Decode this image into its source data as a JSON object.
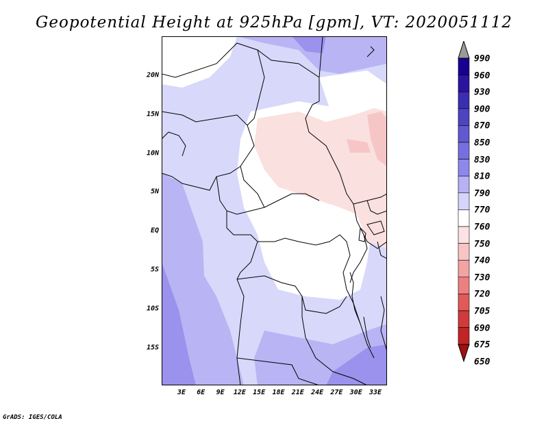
{
  "title": "Geopotential Height at 925hPa [gpm], VT: 2020051112",
  "credit": "GrADS: IGES/COLA",
  "axes": {
    "lat_labels": [
      "20N",
      "15N",
      "10N",
      "5N",
      "EQ",
      "5S",
      "10S",
      "15S"
    ],
    "lon_labels": [
      "3E",
      "6E",
      "9E",
      "12E",
      "15E",
      "18E",
      "21E",
      "24E",
      "27E",
      "30E",
      "33E"
    ]
  },
  "colorbar": {
    "levels": [
      "990",
      "960",
      "930",
      "900",
      "870",
      "850",
      "830",
      "810",
      "790",
      "770",
      "760",
      "750",
      "740",
      "730",
      "720",
      "705",
      "690",
      "675",
      "650"
    ],
    "colors": [
      "#9a9a9a",
      "#1a0090",
      "#2a14a0",
      "#3b2eb0",
      "#4d44c0",
      "#6059d0",
      "#776fe0",
      "#8f88ea",
      "#b7b2f5",
      "#d6d4fb",
      "#ffffff",
      "#fce2e2",
      "#f8c4c4",
      "#f2a4a4",
      "#ec8080",
      "#e05a5a",
      "#d03a3a",
      "#c02424",
      "#a01010"
    ]
  },
  "map_colors": {
    "c770": "#d8d8fb",
    "c790": "#b9b4f4",
    "c810": "#9a92ec",
    "c760": "#ffffff",
    "c750": "#fbe0e0",
    "c740": "#f6c6c6"
  }
}
